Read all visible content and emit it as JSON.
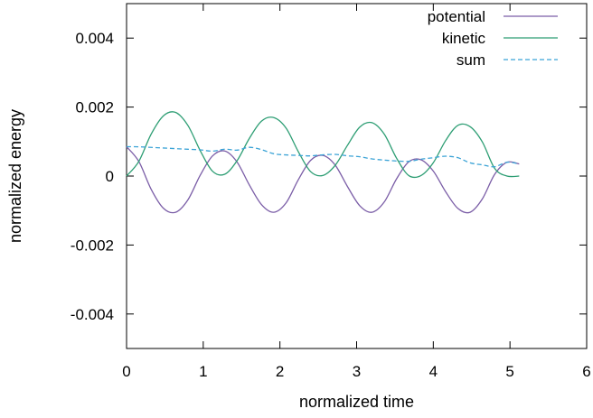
{
  "chart_data": {
    "type": "line",
    "title": "",
    "xlabel": "normalized time",
    "ylabel": "normalized energy",
    "xlim": [
      0,
      6
    ],
    "ylim": [
      -0.005,
      0.005
    ],
    "x_ticks": [
      0,
      1,
      2,
      3,
      4,
      5,
      6
    ],
    "x_tick_labels": [
      "0",
      "1",
      "2",
      "3",
      "4",
      "5",
      "6"
    ],
    "y_ticks": [
      -0.004,
      -0.002,
      0,
      0.002,
      0.004
    ],
    "y_tick_labels": [
      "-0.004",
      "-0.002",
      "0",
      "0.002",
      "0.004"
    ],
    "grid": false,
    "legend_position": "top-right",
    "series": [
      {
        "name": "potential",
        "color": "#7b5ea7",
        "dash": "solid",
        "x": [
          0,
          0.16,
          0.32,
          0.48,
          0.64,
          0.8,
          0.96,
          1.12,
          1.28,
          1.44,
          1.6,
          1.76,
          1.92,
          2.08,
          2.24,
          2.4,
          2.56,
          2.72,
          2.88,
          3.04,
          3.2,
          3.36,
          3.52,
          3.68,
          3.84,
          4.0,
          4.16,
          4.32,
          4.48,
          4.64,
          4.8,
          4.96,
          5.12
        ],
        "y": [
          0.00085,
          0.000423,
          -0.000381,
          -0.000932,
          -0.00105,
          -0.00069,
          2.1e-05,
          0.00058,
          0.000727,
          0.00041,
          -0.000254,
          -0.000829,
          -0.00105,
          -0.000779,
          -0.000107,
          0.000455,
          0.000598,
          0.000319,
          -0.000301,
          -0.000858,
          -0.00105,
          -0.000754,
          -8.5e-05,
          0.000412,
          0.000472,
          0.000144,
          -0.000451,
          -0.000937,
          -0.00105,
          -0.000662,
          4.8e-05,
          0.000399,
          0.00035
        ]
      },
      {
        "name": "kinetic",
        "color": "#2e9e74",
        "dash": "solid",
        "x": [
          0,
          0.16,
          0.32,
          0.48,
          0.64,
          0.8,
          0.96,
          1.12,
          1.28,
          1.44,
          1.6,
          1.76,
          1.92,
          2.08,
          2.24,
          2.4,
          2.56,
          2.72,
          2.88,
          3.04,
          3.2,
          3.36,
          3.52,
          3.68,
          3.84,
          4.0,
          4.16,
          4.32,
          4.48,
          4.64,
          4.8,
          4.96,
          5.12
        ],
        "y": [
          0,
          0.000425,
          0.001212,
          0.001745,
          0.001845,
          0.001467,
          0.000739,
          0.000142,
          5.2e-05,
          0.000441,
          0.001087,
          0.001594,
          0.001696,
          0.001392,
          0.000706,
          0.00013,
          1.7e-05,
          0.000309,
          0.000888,
          0.001417,
          0.001547,
          0.001217,
          0.000521,
          1.5e-05,
          1.6e-05,
          0.000387,
          0.001026,
          0.001469,
          0.001432,
          0.000987,
          0.000222,
          1e-06,
          0.0
        ]
      },
      {
        "name": "sum",
        "color": "#3ba3d6",
        "dash": "dashed",
        "x": [
          0,
          0.16,
          0.32,
          0.48,
          0.64,
          0.8,
          0.96,
          1.12,
          1.28,
          1.44,
          1.6,
          1.76,
          1.92,
          2.08,
          2.24,
          2.4,
          2.56,
          2.72,
          2.88,
          3.04,
          3.2,
          3.36,
          3.52,
          3.68,
          3.84,
          4.0,
          4.16,
          4.32,
          4.48,
          4.64,
          4.8,
          4.96,
          5.12
        ],
        "y": [
          0.00085,
          0.000848,
          0.000831,
          0.000813,
          0.000795,
          0.000777,
          0.00076,
          0.000722,
          0.000779,
          0.000751,
          0.000833,
          0.000765,
          0.000646,
          0.000613,
          0.000599,
          0.000585,
          0.000615,
          0.000628,
          0.000587,
          0.000559,
          0.000497,
          0.000463,
          0.000436,
          0.000427,
          0.000488,
          0.000531,
          0.000575,
          0.000532,
          0.000382,
          0.000325,
          0.00027,
          0.0004,
          0.00035
        ]
      }
    ]
  }
}
